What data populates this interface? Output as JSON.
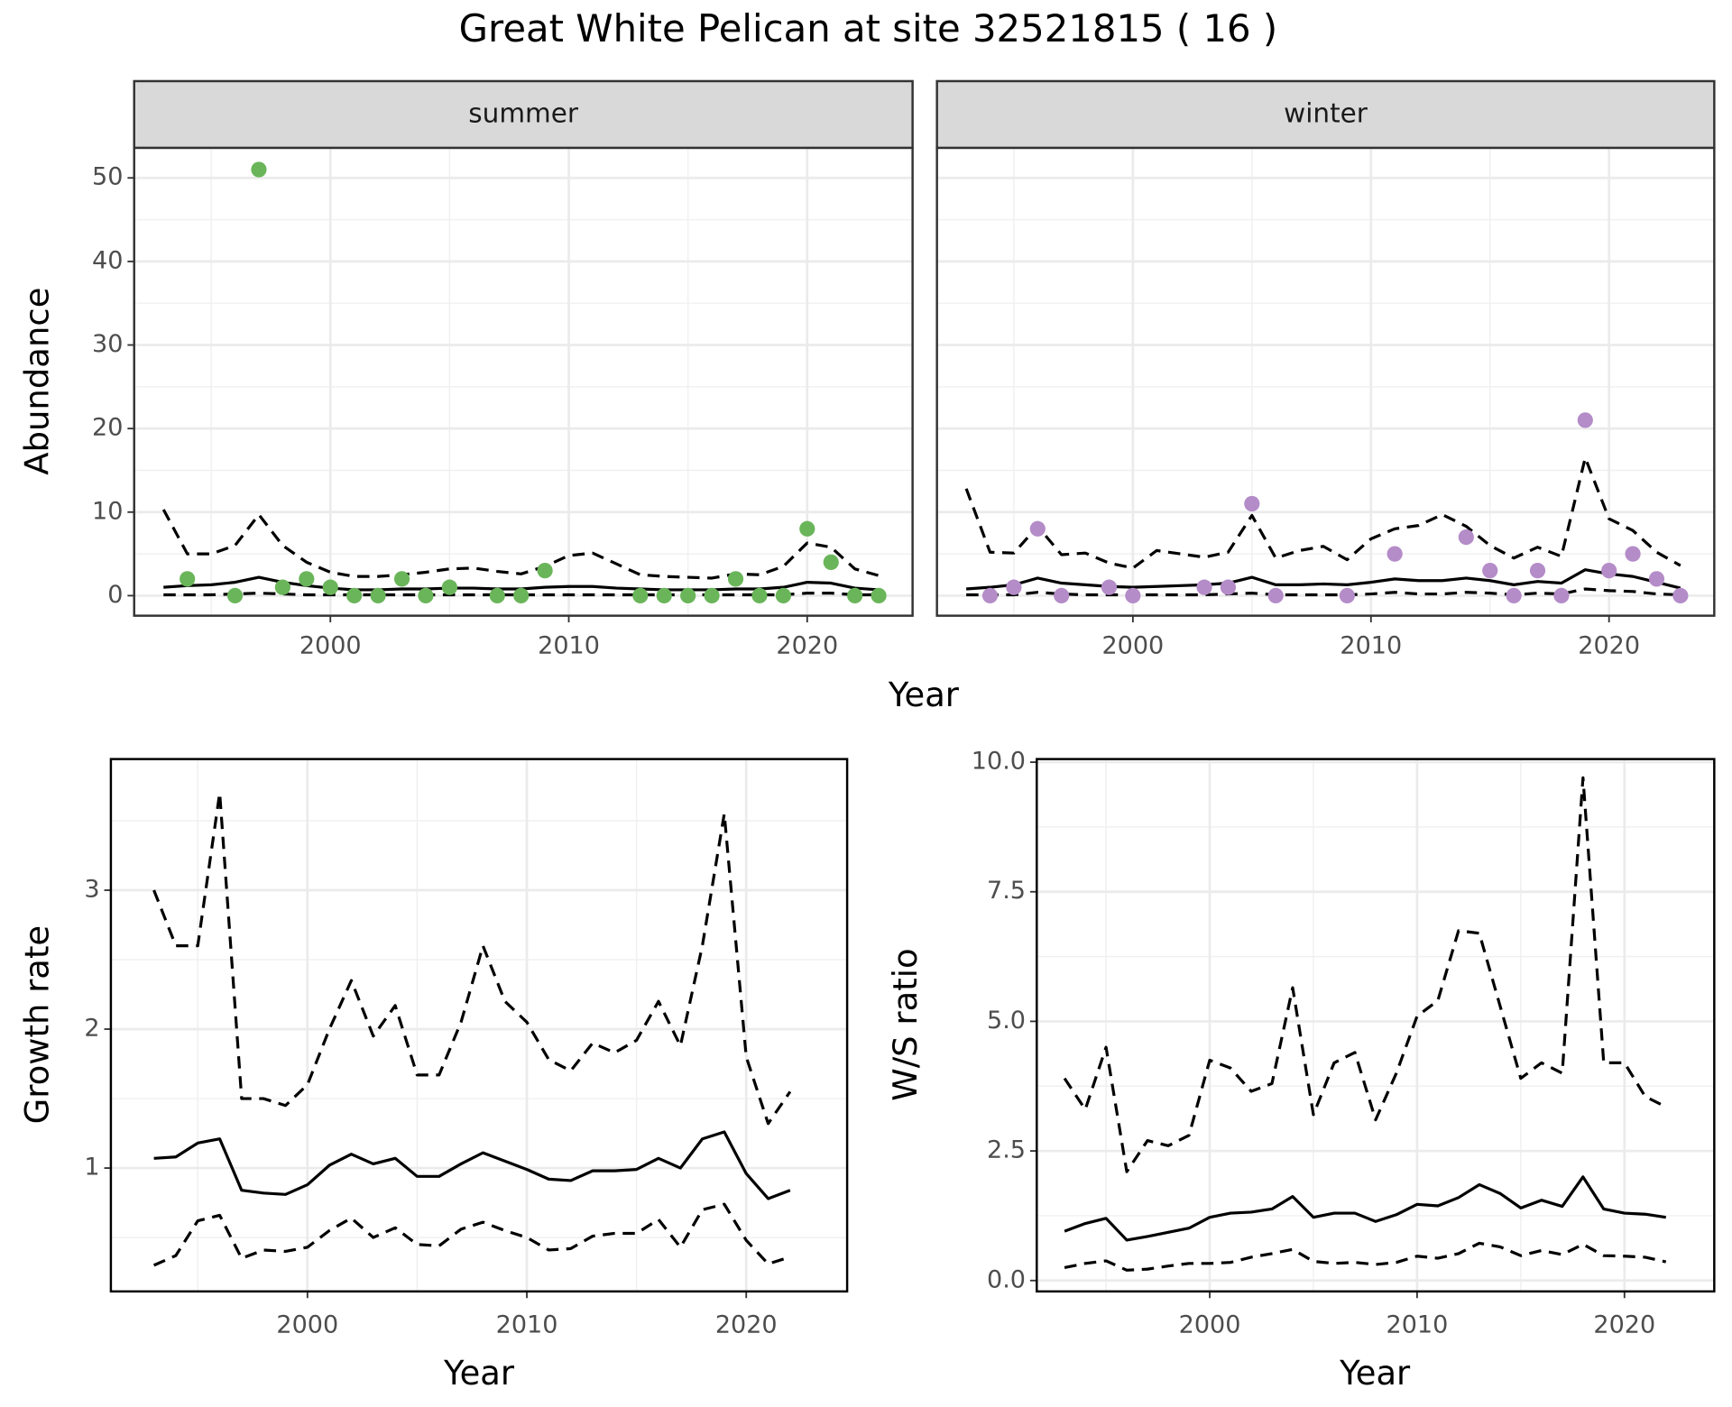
{
  "title": "Great White Pelican at site 32521815 ( 16 )",
  "chart_data": [
    {
      "type": "line",
      "panel_label": "summer",
      "ylabel": "Abundance",
      "xlabel": "Year",
      "xlim": [
        1991.77,
        2024.42
      ],
      "ylim": [
        -2.4,
        53.6
      ],
      "xticks": [
        2000,
        2010,
        2020
      ],
      "yticks": [
        0,
        10,
        20,
        30,
        40,
        50
      ],
      "grid": true,
      "series": [
        {
          "color": "#000000",
          "dash": false,
          "x": [
            1993,
            1994,
            1995,
            1996,
            1997,
            1998,
            1999,
            2000,
            2001,
            2002,
            2003,
            2004,
            2005,
            2006,
            2007,
            2008,
            2009,
            2010,
            2011,
            2012,
            2013,
            2014,
            2015,
            2016,
            2017,
            2018,
            2019,
            2020,
            2021,
            2022,
            2023
          ],
          "values": [
            1,
            1.2,
            1.3,
            1.6,
            2.2,
            1.6,
            1.2,
            0.9,
            0.7,
            0.7,
            0.8,
            0.8,
            0.9,
            0.9,
            0.8,
            0.8,
            1.0,
            1.1,
            1.1,
            0.9,
            0.8,
            0.7,
            0.7,
            0.7,
            0.8,
            0.8,
            1.0,
            1.6,
            1.5,
            0.9,
            0.7
          ]
        },
        {
          "color": "#000000",
          "dash": true,
          "x": [
            1993,
            1994,
            1995,
            1996,
            1997,
            1998,
            1999,
            2000,
            2001,
            2002,
            2003,
            2004,
            2005,
            2006,
            2007,
            2008,
            2009,
            2010,
            2011,
            2012,
            2013,
            2014,
            2015,
            2016,
            2017,
            2018,
            2019,
            2020,
            2021,
            2022,
            2023
          ],
          "values": [
            10.3,
            5,
            5,
            6,
            9.7,
            6,
            4,
            2.8,
            2.3,
            2.3,
            2.5,
            2.8,
            3.2,
            3.3,
            2.9,
            2.6,
            3.5,
            4.8,
            5.1,
            3.8,
            2.5,
            2.3,
            2.2,
            2.1,
            2.6,
            2.5,
            3.5,
            6.3,
            5.8,
            3.2,
            2.4
          ]
        },
        {
          "color": "#000000",
          "dash": true,
          "x": [
            1993,
            1994,
            1995,
            1996,
            1997,
            1998,
            1999,
            2000,
            2001,
            2002,
            2003,
            2004,
            2005,
            2006,
            2007,
            2008,
            2009,
            2010,
            2011,
            2012,
            2013,
            2014,
            2015,
            2016,
            2017,
            2018,
            2019,
            2020,
            2021,
            2022,
            2023
          ],
          "values": [
            0.1,
            0.1,
            0.1,
            0.2,
            0.3,
            0.2,
            0.1,
            0.1,
            0.1,
            0.1,
            0.1,
            0.1,
            0.1,
            0.1,
            0.1,
            0.1,
            0.1,
            0.1,
            0.1,
            0.1,
            0.1,
            0.1,
            0.1,
            0.1,
            0.1,
            0.1,
            0.1,
            0.3,
            0.3,
            0.1,
            0.1
          ]
        },
        {
          "color": "#6ab55a",
          "marker": true,
          "x": [
            1994,
            1996,
            1997,
            1998,
            1999,
            2000,
            2001,
            2002,
            2003,
            2004,
            2005,
            2007,
            2008,
            2009,
            2013,
            2014,
            2015,
            2016,
            2017,
            2018,
            2019,
            2020,
            2021,
            2022,
            2023
          ],
          "values": [
            2,
            0,
            51,
            1,
            2,
            1,
            0,
            0,
            2,
            0,
            1,
            0,
            0,
            3,
            0,
            0,
            0,
            0,
            2,
            0,
            0,
            8,
            4,
            0,
            0
          ]
        }
      ]
    },
    {
      "type": "line",
      "panel_label": "winter",
      "xlim": [
        1991.77,
        2024.42
      ],
      "ylim": [
        -2.4,
        53.6
      ],
      "xticks": [
        2000,
        2010,
        2020
      ],
      "yticks": [
        0,
        10,
        20,
        30,
        40,
        50
      ],
      "grid": true,
      "series": [
        {
          "color": "#000000",
          "dash": false,
          "x": [
            1993,
            1994,
            1995,
            1996,
            1997,
            1998,
            1999,
            2000,
            2001,
            2002,
            2003,
            2004,
            2005,
            2006,
            2007,
            2008,
            2009,
            2010,
            2011,
            2012,
            2013,
            2014,
            2015,
            2016,
            2017,
            2018,
            2019,
            2020,
            2021,
            2022,
            2023
          ],
          "values": [
            0.8,
            1.0,
            1.3,
            2.1,
            1.5,
            1.3,
            1.1,
            1.0,
            1.1,
            1.2,
            1.3,
            1.5,
            2.2,
            1.3,
            1.3,
            1.4,
            1.3,
            1.6,
            2.0,
            1.8,
            1.8,
            2.1,
            1.8,
            1.3,
            1.7,
            1.5,
            3.1,
            2.6,
            2.3,
            1.6,
            0.9
          ]
        },
        {
          "color": "#000000",
          "dash": true,
          "x": [
            1993,
            1994,
            1995,
            1996,
            1997,
            1998,
            1999,
            2000,
            2001,
            2002,
            2003,
            2004,
            2005,
            2006,
            2007,
            2008,
            2009,
            2010,
            2011,
            2012,
            2013,
            2014,
            2015,
            2016,
            2017,
            2018,
            2019,
            2020,
            2021,
            2022,
            2023
          ],
          "values": [
            12.8,
            5.2,
            5.1,
            8.3,
            4.9,
            5.1,
            3.9,
            3.3,
            5.4,
            5.0,
            4.6,
            5.2,
            9.6,
            4.5,
            5.4,
            5.9,
            4.3,
            6.8,
            8.0,
            8.4,
            9.7,
            8.3,
            6.0,
            4.5,
            5.8,
            4.7,
            16.5,
            9.2,
            7.8,
            5.2,
            3.6
          ]
        },
        {
          "color": "#000000",
          "dash": true,
          "x": [
            1993,
            1994,
            1995,
            1996,
            1997,
            1998,
            1999,
            2000,
            2001,
            2002,
            2003,
            2004,
            2005,
            2006,
            2007,
            2008,
            2009,
            2010,
            2011,
            2012,
            2013,
            2014,
            2015,
            2016,
            2017,
            2018,
            2019,
            2020,
            2021,
            2022,
            2023
          ],
          "values": [
            0.1,
            0.1,
            0.1,
            0.4,
            0.2,
            0.1,
            0.1,
            0.1,
            0.1,
            0.1,
            0.1,
            0.2,
            0.3,
            0.1,
            0.1,
            0.1,
            0.1,
            0.2,
            0.4,
            0.2,
            0.2,
            0.4,
            0.3,
            0.1,
            0.3,
            0.2,
            0.8,
            0.6,
            0.5,
            0.2,
            0.1
          ]
        },
        {
          "color": "#b48cc8",
          "marker": true,
          "x": [
            1994,
            1995,
            1996,
            1997,
            1999,
            2000,
            2003,
            2004,
            2005,
            2006,
            2009,
            2011,
            2014,
            2015,
            2016,
            2017,
            2018,
            2019,
            2020,
            2021,
            2022,
            2023
          ],
          "values": [
            0,
            1,
            8,
            0,
            1,
            0,
            1,
            1,
            11,
            0,
            0,
            5,
            7,
            3,
            0,
            3,
            0,
            21,
            3,
            5,
            2,
            0
          ]
        }
      ]
    },
    {
      "type": "line",
      "ylabel": "Growth rate",
      "xlabel": "Year",
      "xlim": [
        1991.04,
        2024.6
      ],
      "ylim": [
        0.112,
        3.944
      ],
      "xticks": [
        2000,
        2010,
        2020
      ],
      "yticks": [
        1,
        2,
        3
      ],
      "grid": true,
      "series": [
        {
          "color": "#000000",
          "dash": false,
          "x": [
            1993,
            1994,
            1995,
            1996,
            1997,
            1998,
            1999,
            2000,
            2001,
            2002,
            2003,
            2004,
            2005,
            2006,
            2007,
            2008,
            2009,
            2010,
            2011,
            2012,
            2013,
            2014,
            2015,
            2016,
            2017,
            2018,
            2019,
            2020,
            2021,
            2022
          ],
          "values": [
            1.07,
            1.08,
            1.18,
            1.21,
            0.84,
            0.82,
            0.81,
            0.88,
            1.02,
            1.1,
            1.03,
            1.07,
            0.94,
            0.94,
            1.03,
            1.11,
            1.05,
            0.99,
            0.92,
            0.91,
            0.98,
            0.98,
            0.99,
            1.07,
            1.0,
            1.21,
            1.26,
            0.96,
            0.78,
            0.84
          ]
        },
        {
          "color": "#000000",
          "dash": true,
          "x": [
            1993,
            1994,
            1995,
            1996,
            1997,
            1998,
            1999,
            2000,
            2001,
            2002,
            2003,
            2004,
            2005,
            2006,
            2007,
            2008,
            2009,
            2010,
            2011,
            2012,
            2013,
            2014,
            2015,
            2016,
            2017,
            2018,
            2019,
            2020,
            2021,
            2022
          ],
          "values": [
            3.0,
            2.6,
            2.6,
            3.7,
            1.5,
            1.5,
            1.45,
            1.6,
            2.0,
            2.35,
            1.95,
            2.17,
            1.67,
            1.67,
            2.05,
            2.6,
            2.2,
            2.05,
            1.78,
            1.7,
            1.9,
            1.83,
            1.92,
            2.2,
            1.88,
            2.6,
            3.55,
            1.8,
            1.32,
            1.55
          ]
        },
        {
          "color": "#000000",
          "dash": true,
          "x": [
            1993,
            1994,
            1995,
            1996,
            1997,
            1998,
            1999,
            2000,
            2001,
            2002,
            2003,
            2004,
            2005,
            2006,
            2007,
            2008,
            2009,
            2010,
            2011,
            2012,
            2013,
            2014,
            2015,
            2016,
            2017,
            2018,
            2019,
            2020,
            2021,
            2022
          ],
          "values": [
            0.3,
            0.37,
            0.62,
            0.66,
            0.35,
            0.41,
            0.4,
            0.43,
            0.55,
            0.64,
            0.5,
            0.57,
            0.45,
            0.44,
            0.56,
            0.61,
            0.55,
            0.5,
            0.41,
            0.42,
            0.51,
            0.53,
            0.53,
            0.63,
            0.43,
            0.7,
            0.74,
            0.48,
            0.31,
            0.36
          ]
        }
      ]
    },
    {
      "type": "line",
      "ylabel": "W/S ratio",
      "xlabel": "Year",
      "xlim": [
        1991.66,
        2024.33
      ],
      "ylim": [
        -0.21,
        10.06
      ],
      "xticks": [
        2000,
        2010,
        2020
      ],
      "yticks": [
        {
          "value": 0,
          "label": "0.0"
        },
        2.5,
        {
          "value": 5,
          "label": "5.0"
        },
        7.5,
        {
          "value": 10,
          "label": "10.0"
        }
      ],
      "grid": true,
      "series": [
        {
          "color": "#000000",
          "dash": false,
          "x": [
            1993,
            1994,
            1995,
            1996,
            1997,
            1998,
            1999,
            2000,
            2001,
            2002,
            2003,
            2004,
            2005,
            2006,
            2007,
            2008,
            2009,
            2010,
            2011,
            2012,
            2013,
            2014,
            2015,
            2016,
            2017,
            2018,
            2019,
            2020,
            2021,
            2022
          ],
          "values": [
            0.95,
            1.1,
            1.2,
            0.78,
            0.85,
            0.93,
            1.01,
            1.22,
            1.3,
            1.32,
            1.38,
            1.62,
            1.22,
            1.3,
            1.3,
            1.14,
            1.27,
            1.47,
            1.44,
            1.6,
            1.85,
            1.68,
            1.4,
            1.55,
            1.43,
            2.0,
            1.38,
            1.3,
            1.28,
            1.22
          ]
        },
        {
          "color": "#000000",
          "dash": true,
          "x": [
            1993,
            1994,
            1995,
            1996,
            1997,
            1998,
            1999,
            2000,
            2001,
            2002,
            2003,
            2004,
            2005,
            2006,
            2007,
            2008,
            2009,
            2010,
            2011,
            2012,
            2013,
            2014,
            2015,
            2016,
            2017,
            2018,
            2019,
            2020,
            2021,
            2022
          ],
          "values": [
            3.9,
            3.3,
            4.5,
            2.1,
            2.7,
            2.6,
            2.8,
            4.25,
            4.1,
            3.65,
            3.8,
            5.65,
            3.2,
            4.2,
            4.4,
            3.1,
            4.0,
            5.1,
            5.4,
            6.75,
            6.7,
            5.3,
            3.9,
            4.2,
            4.0,
            9.7,
            4.2,
            4.2,
            3.55,
            3.35
          ]
        },
        {
          "color": "#000000",
          "dash": true,
          "x": [
            1993,
            1994,
            1995,
            1996,
            1997,
            1998,
            1999,
            2000,
            2001,
            2002,
            2003,
            2004,
            2005,
            2006,
            2007,
            2008,
            2009,
            2010,
            2011,
            2012,
            2013,
            2014,
            2015,
            2016,
            2017,
            2018,
            2019,
            2020,
            2021,
            2022
          ],
          "values": [
            0.25,
            0.33,
            0.38,
            0.2,
            0.22,
            0.28,
            0.33,
            0.33,
            0.35,
            0.45,
            0.52,
            0.6,
            0.37,
            0.33,
            0.35,
            0.31,
            0.35,
            0.47,
            0.43,
            0.52,
            0.72,
            0.65,
            0.48,
            0.58,
            0.5,
            0.7,
            0.48,
            0.47,
            0.45,
            0.36
          ]
        }
      ]
    }
  ]
}
